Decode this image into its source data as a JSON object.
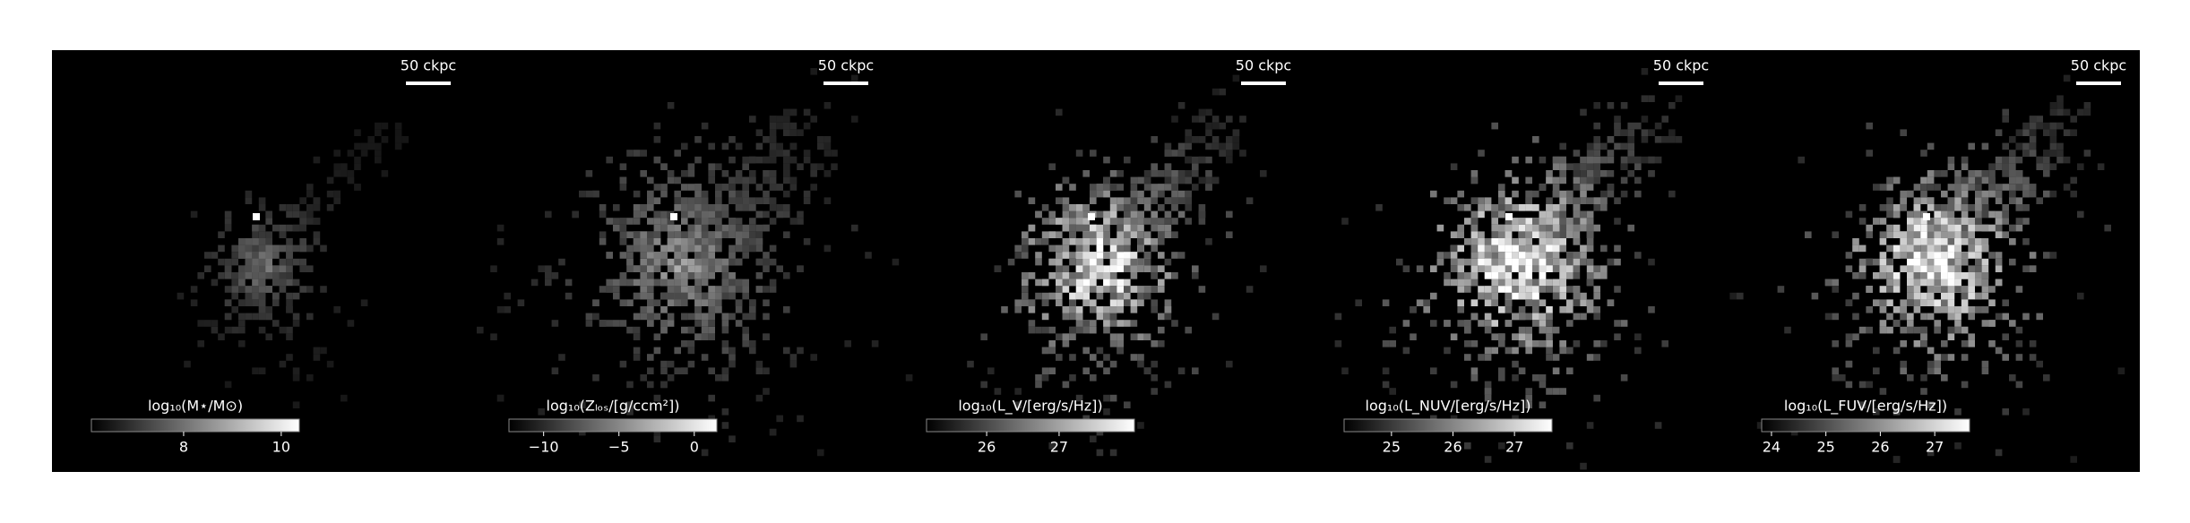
{
  "chart_data": [
    {
      "type": "image",
      "cmap": "gray",
      "scalebar": "50 ckpc",
      "colorbar_label": "log₁₀(M⋆/M⊙)",
      "clim": [
        6.11,
        10.37
      ],
      "ticks": [
        8,
        10
      ]
    },
    {
      "type": "image",
      "cmap": "gray",
      "scalebar": "50 ckpc",
      "colorbar_label": "log₁₀(Zₗₒₛ/[g/ccm²])",
      "clim": [
        -12.3,
        1.5
      ],
      "ticks": [
        {
          "value": -10,
          "label": "−10"
        },
        {
          "value": -5,
          "label": "−5"
        },
        0
      ]
    },
    {
      "type": "image",
      "cmap": "gray",
      "scalebar": "50 ckpc",
      "colorbar_label": "log₁₀(L_V/[erg/s/Hz])",
      "clim": [
        25.17,
        28.04
      ],
      "ticks": [
        26,
        27
      ]
    },
    {
      "type": "image",
      "cmap": "gray",
      "scalebar": "50 ckpc",
      "colorbar_label": "log₁₀(L_NUV/[erg/s/Hz])",
      "clim": [
        24.23,
        27.61
      ],
      "ticks": [
        25,
        26,
        27
      ]
    },
    {
      "type": "image",
      "cmap": "gray",
      "scalebar": "50 ckpc",
      "colorbar_label": "log₁₀(L_FUV/[erg/s/Hz])",
      "clim": [
        23.82,
        27.64
      ],
      "ticks": [
        24,
        25,
        26,
        27
      ]
    }
  ]
}
